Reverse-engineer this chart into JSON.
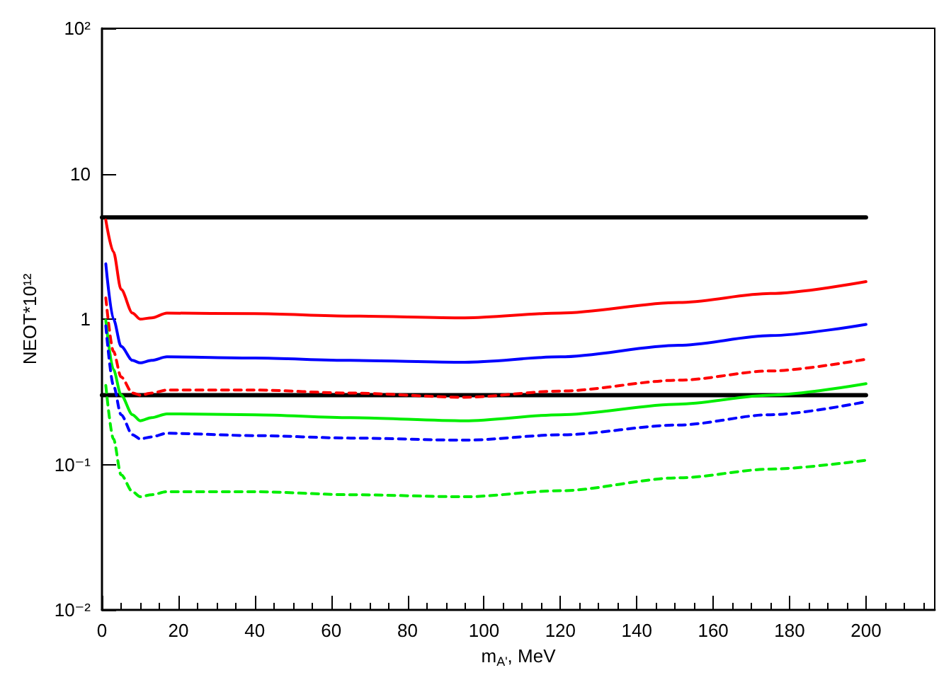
{
  "chart_data": {
    "type": "line",
    "xlabel": "m$_{A'}$, MeV",
    "ylabel": "NEOT*10¹²",
    "log": "y",
    "grid": false,
    "marker": "none",
    "xlim": [
      0,
      218
    ],
    "xticks": [
      0,
      20,
      40,
      60,
      80,
      100,
      120,
      140,
      160,
      180,
      200
    ],
    "ylim": [
      0.01,
      100
    ],
    "yticks": [
      {
        "value": 0.01,
        "label": "10⁻²"
      },
      {
        "value": 0.1,
        "label": "10⁻¹"
      },
      1,
      10,
      {
        "value": 100,
        "label": "10²"
      }
    ],
    "x": [
      0,
      1,
      3,
      5,
      8,
      10,
      13,
      17,
      40,
      65,
      95,
      120,
      151,
      175,
      200
    ],
    "series": [
      {
        "color": "#000000",
        "values": [
          5,
          5,
          5,
          5,
          5,
          5,
          5,
          5,
          5,
          5,
          5,
          5,
          5,
          5,
          5
        ],
        "line_style": "solid"
      },
      {
        "color": "#000000",
        "values": [
          0.3,
          0.3,
          0.3,
          0.3,
          0.3,
          0.3,
          0.3,
          0.3,
          0.3,
          0.3,
          0.3,
          0.3,
          0.3,
          0.3,
          0.3
        ],
        "line_style": "solid"
      },
      {
        "color": "#ff0000",
        "values": [
          null,
          4.8,
          2.9,
          1.6,
          1.1,
          1.0,
          1.02,
          1.1,
          1.09,
          1.05,
          1.02,
          1.1,
          1.3,
          1.5,
          1.81
        ],
        "line_style": "solid"
      },
      {
        "color": "#0000ff",
        "values": [
          null,
          2.4,
          1.0,
          0.65,
          0.52,
          0.5,
          0.52,
          0.55,
          0.54,
          0.52,
          0.505,
          0.55,
          0.66,
          0.77,
          0.92
        ],
        "line_style": "solid"
      },
      {
        "color": "#ff0000",
        "values": [
          null,
          1.4,
          0.6,
          0.4,
          0.31,
          0.3,
          0.31,
          0.325,
          0.325,
          0.31,
          0.29,
          0.32,
          0.38,
          0.44,
          0.53
        ],
        "line_style": "dashed"
      },
      {
        "color": "#00ee00",
        "values": [
          null,
          0.98,
          0.45,
          0.3,
          0.22,
          0.2,
          0.21,
          0.223,
          0.22,
          0.21,
          0.2,
          0.22,
          0.26,
          0.3,
          0.36
        ],
        "line_style": "solid"
      },
      {
        "color": "#0000ff",
        "values": [
          null,
          0.9,
          0.35,
          0.22,
          0.16,
          0.15,
          0.155,
          0.164,
          0.158,
          0.152,
          0.147,
          0.16,
          0.187,
          0.22,
          0.27
        ],
        "line_style": "dashed"
      },
      {
        "color": "#00ee00",
        "values": [
          null,
          0.35,
          0.15,
          0.085,
          0.065,
          0.06,
          0.062,
          0.065,
          0.065,
          0.062,
          0.06,
          0.066,
          0.081,
          0.093,
          0.107
        ],
        "line_style": "dashed"
      }
    ]
  }
}
